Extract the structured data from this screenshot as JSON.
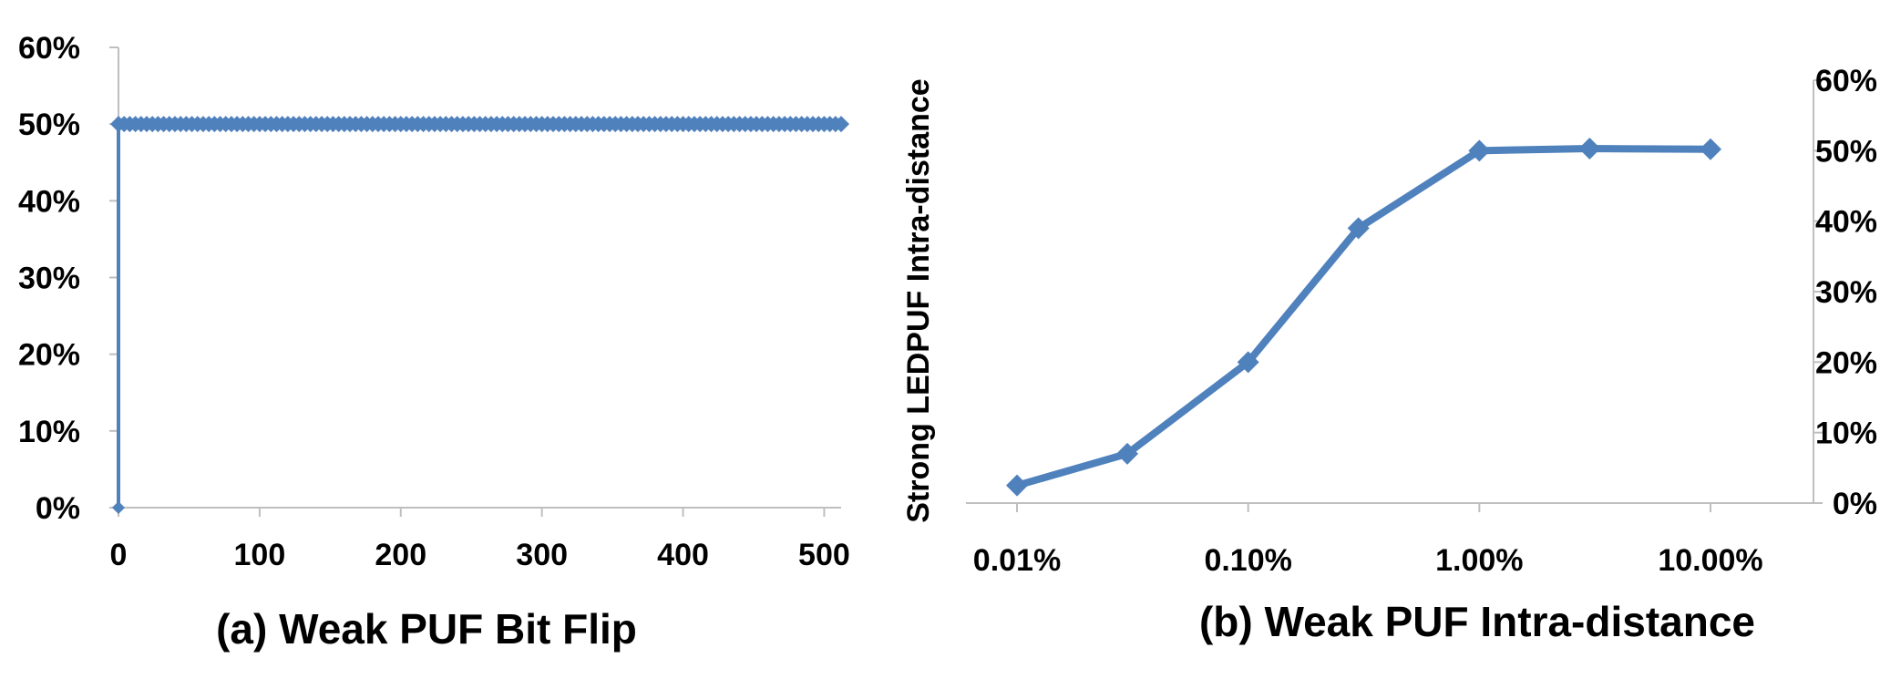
{
  "chart_data": [
    {
      "type": "line",
      "caption": "(a) Weak PUF Bit Flip",
      "xlabel": "",
      "ylabel": "",
      "x_ticks": [
        "0",
        "100",
        "200",
        "300",
        "400",
        "500"
      ],
      "y_ticks": [
        "0%",
        "10%",
        "20%",
        "30%",
        "40%",
        "50%",
        "60%"
      ],
      "xlim": [
        0,
        512
      ],
      "ylim": [
        0,
        60
      ],
      "series": [
        {
          "x_start": 0,
          "x_end": 512,
          "first_value": 0,
          "value": 50,
          "color": "#4f81bd"
        }
      ]
    },
    {
      "type": "line",
      "caption": "(b) Weak PUF Intra-distance",
      "xlabel": "",
      "ylabel": "Strong LEDPUF Intra-distance",
      "x_scale": "log",
      "x_ticks": [
        "0.01%",
        "0.10%",
        "1.00%",
        "10.00%"
      ],
      "y_ticks": [
        "0%",
        "10%",
        "20%",
        "30%",
        "40%",
        "50%",
        "60%"
      ],
      "y_axis_side": "right",
      "ylim": [
        0,
        60
      ],
      "series": [
        {
          "x": [
            "0.01%",
            "0.03%",
            "0.10%",
            "0.30%",
            "1.00%",
            "3.00%",
            "10.00%"
          ],
          "values": [
            2.5,
            7,
            20,
            39,
            50,
            50.3,
            50.2
          ],
          "color": "#4f81bd"
        }
      ]
    }
  ]
}
